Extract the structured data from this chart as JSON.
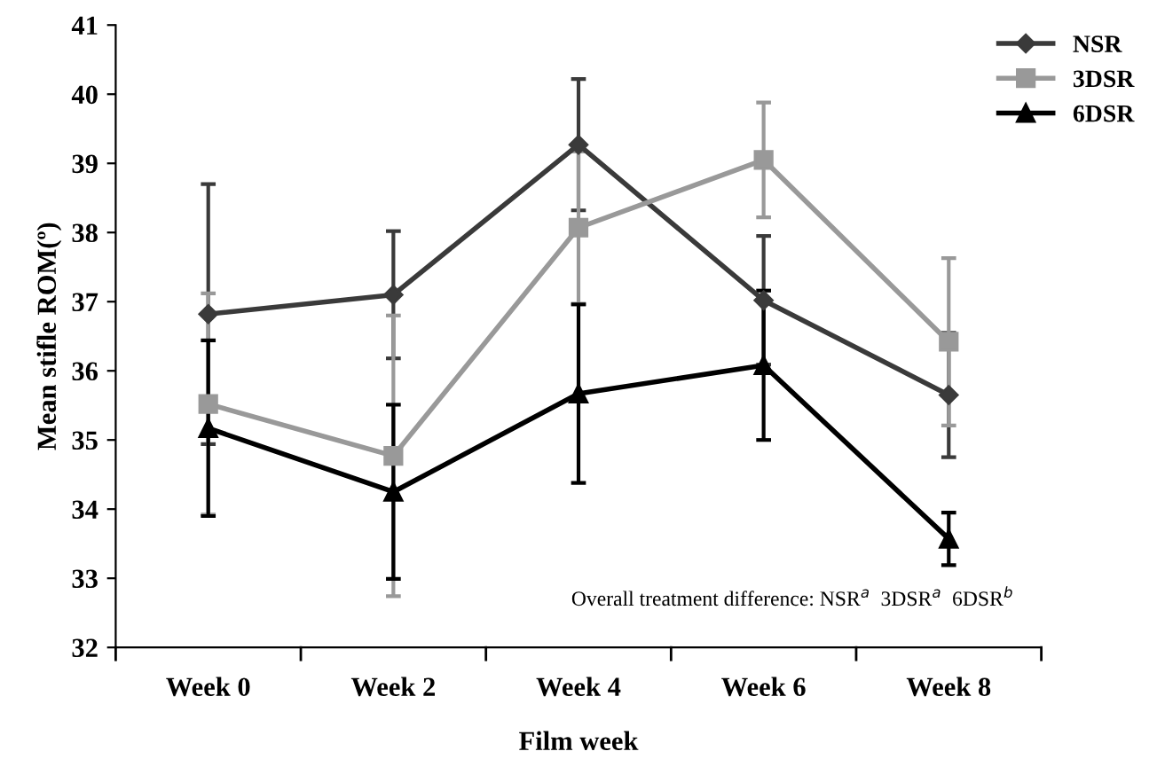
{
  "chart_data": {
    "type": "line",
    "xlabel": "Film week",
    "ylabel": "Mean stifle ROM(º)",
    "categories": [
      "Week 0",
      "Week 2",
      "Week 4",
      "Week 6",
      "Week 8"
    ],
    "ylim": [
      32,
      41
    ],
    "yticks": [
      32,
      33,
      34,
      35,
      36,
      37,
      38,
      39,
      40,
      41
    ],
    "grid": false,
    "legend": "top right",
    "annotations": [
      "Overall treatment difference: NSR$^{a}$  3DSR$^{a}$  6DSR$^{b}$"
    ],
    "series": [
      {
        "name": "NSR",
        "color": "#3a3a3a",
        "marker": "diamond",
        "values": [
          36.82,
          37.1,
          39.27,
          37.02,
          35.65
        ],
        "errors": [
          1.88,
          0.92,
          0.95,
          0.93,
          0.9
        ]
      },
      {
        "name": "3DSR",
        "color": "#999999",
        "marker": "square",
        "values": [
          35.52,
          34.77,
          38.07,
          39.05,
          36.42
        ],
        "errors": [
          1.6,
          2.03,
          1.1,
          0.83,
          1.21
        ]
      },
      {
        "name": "6DSR",
        "color": "#000000",
        "marker": "triangle",
        "values": [
          35.17,
          34.25,
          35.67,
          36.08,
          33.57
        ],
        "errors": [
          1.27,
          1.26,
          1.29,
          1.08,
          0.38
        ]
      }
    ]
  }
}
